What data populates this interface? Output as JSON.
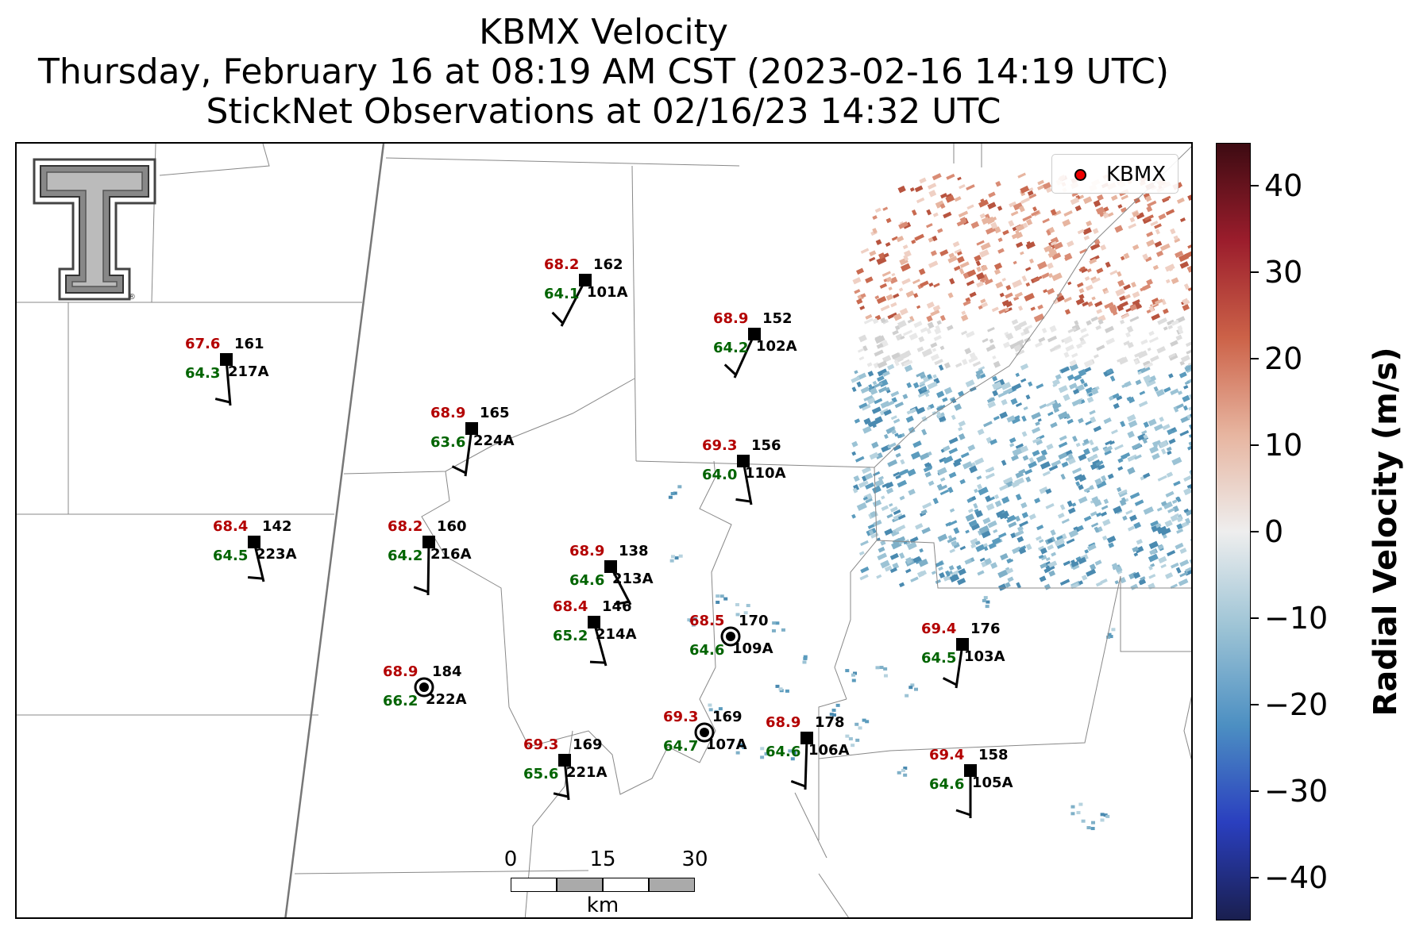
{
  "title": {
    "line1": "KBMX Velocity",
    "line2": "Thursday, February 16 at 08:19 AM CST (2023-02-16 14:19 UTC)",
    "line3": "StickNet Observations at 02/16/23 14:32 UTC"
  },
  "legend": {
    "label": "KBMX",
    "marker_color": "#ee0000"
  },
  "colorbar": {
    "label": "Radial Velocity (m/s)",
    "ticks": [
      "40",
      "30",
      "20",
      "10",
      "0",
      "−10",
      "−20",
      "−30",
      "−40"
    ],
    "range": [
      -45,
      45
    ],
    "colors": [
      "#1a1f4f",
      "#2a3fbf",
      "#4c8fc2",
      "#9cc3d5",
      "#eeeeee",
      "#e7b5a0",
      "#cc6248",
      "#9b1d2c",
      "#3d0b12"
    ]
  },
  "scalebar": {
    "labels": [
      "0",
      "15",
      "30"
    ],
    "unit": "km"
  },
  "logo": {
    "name": "Texas Tech Double T",
    "text": "T"
  },
  "stations": [
    {
      "id": "101A",
      "num": "162",
      "temp": "68.2",
      "dew": "64.1",
      "type": "square"
    },
    {
      "id": "102A",
      "num": "152",
      "temp": "68.9",
      "dew": "64.2",
      "type": "square"
    },
    {
      "id": "217A",
      "num": "161",
      "temp": "67.6",
      "dew": "64.3",
      "type": "square"
    },
    {
      "id": "224A",
      "num": "165",
      "temp": "68.9",
      "dew": "63.6",
      "type": "square"
    },
    {
      "id": "110A",
      "num": "156",
      "temp": "69.3",
      "dew": "64.0",
      "type": "square"
    },
    {
      "id": "223A",
      "num": "142",
      "temp": "68.4",
      "dew": "64.5",
      "type": "square"
    },
    {
      "id": "216A",
      "num": "160",
      "temp": "68.2",
      "dew": "64.2",
      "type": "square"
    },
    {
      "id": "213A",
      "num": "138",
      "temp": "68.9",
      "dew": "64.6",
      "type": "square"
    },
    {
      "id": "214A",
      "num": "146",
      "temp": "68.4",
      "dew": "65.2",
      "type": "square"
    },
    {
      "id": "109A",
      "num": "170",
      "temp": "68.5",
      "dew": "64.6",
      "type": "calm"
    },
    {
      "id": "103A",
      "num": "176",
      "temp": "69.4",
      "dew": "64.5",
      "type": "square"
    },
    {
      "id": "222A",
      "num": "184",
      "temp": "68.9",
      "dew": "66.2",
      "type": "calm"
    },
    {
      "id": "107A",
      "num": "169",
      "temp": "69.3",
      "dew": "64.7",
      "type": "calm"
    },
    {
      "id": "106A",
      "num": "178",
      "temp": "68.9",
      "dew": "64.6",
      "type": "square"
    },
    {
      "id": "221A",
      "num": "169",
      "temp": "69.3",
      "dew": "65.6",
      "type": "square"
    },
    {
      "id": "105A",
      "num": "158",
      "temp": "69.4",
      "dew": "64.6",
      "type": "square"
    }
  ]
}
